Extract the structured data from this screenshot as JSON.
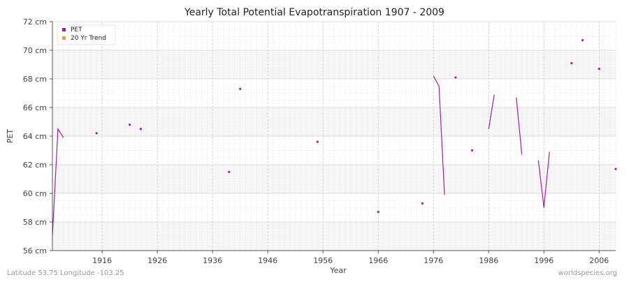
{
  "chart_data": {
    "type": "line",
    "title": "Yearly Total Potential Evapotranspiration 1907 - 2009",
    "xlabel": "Year",
    "ylabel": "PET",
    "xlim": [
      1907,
      2009
    ],
    "ylim": [
      56,
      72
    ],
    "x_ticks": [
      1916,
      1926,
      1936,
      1946,
      1956,
      1966,
      1976,
      1986,
      1996,
      2006
    ],
    "y_ticks": [
      56,
      58,
      60,
      62,
      64,
      66,
      68,
      70,
      72
    ],
    "y_unit": "cm",
    "grid": true,
    "legend_position": "top-left",
    "series": [
      {
        "name": "PET",
        "color": "#a020a0",
        "x": [
          1907,
          1908,
          1909,
          1915,
          1921,
          1923,
          1939,
          1941,
          1955,
          1966,
          1974,
          1976,
          1977,
          1978,
          1980,
          1983,
          1986,
          1987,
          1991,
          1992,
          1995,
          1996,
          1997,
          2001,
          2003,
          2006,
          2009
        ],
        "y": [
          57.0,
          64.5,
          63.9,
          64.2,
          64.8,
          64.5,
          61.5,
          67.3,
          63.6,
          58.7,
          59.3,
          68.2,
          67.5,
          59.9,
          68.1,
          63.0,
          64.5,
          66.9,
          66.7,
          62.7,
          62.3,
          59.0,
          62.9,
          69.1,
          70.7,
          68.7,
          61.7
        ],
        "segments": [
          [
            0,
            2
          ],
          [
            11,
            13
          ],
          [
            16,
            17
          ],
          [
            18,
            19
          ],
          [
            20,
            22
          ]
        ]
      },
      {
        "name": "20 Yr Trend",
        "color": "#f0a020",
        "x": [],
        "y": []
      }
    ]
  },
  "footer": {
    "left": "Latitude 53.75 Longitude -103.25",
    "right": "worldspecies.org"
  }
}
